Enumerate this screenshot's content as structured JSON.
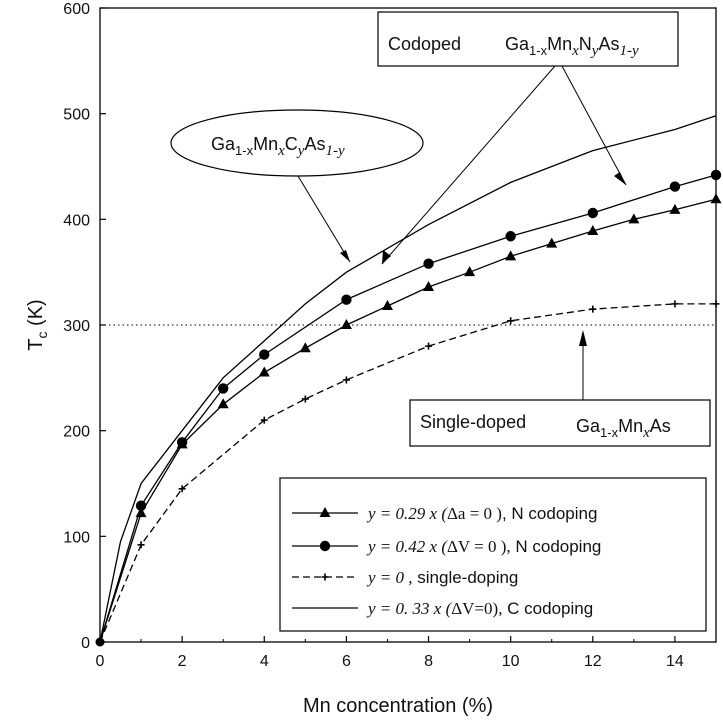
{
  "chart_data": {
    "type": "line",
    "xlabel": "Mn concentration (%)",
    "ylabel_main": "T",
    "ylabel_sub": "c",
    "ylabel_unit": " (K)",
    "xlim": [
      0,
      15
    ],
    "ylim": [
      0,
      600
    ],
    "xticks": [
      0,
      2,
      4,
      6,
      8,
      10,
      12,
      14
    ],
    "yticks": [
      0,
      100,
      200,
      300,
      400,
      500,
      600
    ],
    "reference_line": {
      "y": 300,
      "style": "dotted"
    },
    "grid": false,
    "legend_position": "bottom-right",
    "series": [
      {
        "key": "n_tri",
        "marker": "triangle",
        "line": "solid",
        "legend": {
          "eq": "y = 0.29 x (",
          "delta": "Δa = 0 )",
          "suffix": ", N codoping"
        },
        "x": [
          0,
          1,
          2,
          3,
          4,
          5,
          6,
          7,
          8,
          9,
          10,
          11,
          12,
          13,
          14,
          15
        ],
        "y": [
          0,
          122,
          187,
          225,
          255,
          278,
          300,
          318,
          336,
          350,
          365,
          377,
          389,
          400,
          409,
          419
        ]
      },
      {
        "key": "n_circ",
        "marker": "circle",
        "line": "solid",
        "legend": {
          "eq": "y = 0.42 x (",
          "delta": "ΔV = 0 ),",
          "suffix": " N codoping"
        },
        "x": [
          0,
          1,
          2,
          3,
          4,
          6,
          8,
          10,
          12,
          14,
          15
        ],
        "y": [
          0,
          129,
          189,
          240,
          272,
          324,
          358,
          384,
          406,
          431,
          442
        ]
      },
      {
        "key": "single",
        "marker": "plus",
        "line": "dashed",
        "legend": {
          "eq": "y = 0 ,",
          "delta": "",
          "suffix": " single-doping"
        },
        "x": [
          0,
          1,
          2,
          4,
          5,
          6,
          8,
          10,
          12,
          14,
          15
        ],
        "y": [
          0,
          92,
          145,
          210,
          230,
          248,
          280,
          304,
          315,
          320,
          320
        ]
      },
      {
        "key": "c_line",
        "marker": "none",
        "line": "solid",
        "legend": {
          "eq": "y = 0. 33 x (",
          "delta": "ΔV=0),",
          "suffix": " C codoping"
        },
        "x": [
          0,
          0.5,
          1,
          2,
          3,
          4,
          5,
          6,
          8,
          10,
          12,
          14,
          15
        ],
        "y": [
          0,
          95,
          150,
          200,
          250,
          285,
          320,
          350,
          395,
          435,
          465,
          485,
          498
        ]
      }
    ],
    "annotations": {
      "codoped": {
        "label": "Codoped",
        "formula": [
          {
            "t": "Ga",
            "s": "n"
          },
          {
            "t": "1-x",
            "s": "sub"
          },
          {
            "t": "Mn",
            "s": "n"
          },
          {
            "t": "x",
            "s": "subi"
          },
          {
            "t": "N",
            "s": "n"
          },
          {
            "t": "y",
            "s": "subi"
          },
          {
            "t": "As",
            "s": "n"
          },
          {
            "t": "1-y",
            "s": "subi"
          }
        ]
      },
      "carbon": {
        "formula": [
          {
            "t": "Ga",
            "s": "n"
          },
          {
            "t": "1-x",
            "s": "sub"
          },
          {
            "t": "Mn",
            "s": "n"
          },
          {
            "t": "x",
            "s": "subi"
          },
          {
            "t": "C",
            "s": "n"
          },
          {
            "t": "y",
            "s": "subi"
          },
          {
            "t": "As",
            "s": "n"
          },
          {
            "t": "1-y",
            "s": "subi"
          }
        ]
      },
      "single": {
        "label": "Single-doped",
        "formula": [
          {
            "t": "Ga",
            "s": "n"
          },
          {
            "t": "1-x",
            "s": "sub"
          },
          {
            "t": "Mn",
            "s": "n"
          },
          {
            "t": "x",
            "s": "subi"
          },
          {
            "t": "As",
            "s": "n"
          }
        ]
      }
    }
  }
}
